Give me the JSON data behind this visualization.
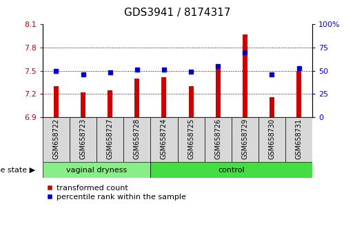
{
  "title": "GDS3941 / 8174317",
  "samples": [
    "GSM658722",
    "GSM658723",
    "GSM658727",
    "GSM658728",
    "GSM658724",
    "GSM658725",
    "GSM658726",
    "GSM658729",
    "GSM658730",
    "GSM658731"
  ],
  "transformed_count": [
    7.3,
    7.22,
    7.25,
    7.4,
    7.42,
    7.3,
    7.55,
    7.97,
    7.16,
    7.5
  ],
  "percentile_rank": [
    50,
    46,
    48,
    51,
    51,
    49,
    55,
    70,
    46,
    53
  ],
  "groups": [
    "vaginal dryness",
    "vaginal dryness",
    "vaginal dryness",
    "vaginal dryness",
    "control",
    "control",
    "control",
    "control",
    "control",
    "control"
  ],
  "ylim_left": [
    6.9,
    8.1
  ],
  "ylim_right": [
    0,
    100
  ],
  "yticks_left": [
    6.9,
    7.2,
    7.5,
    7.8,
    8.1
  ],
  "yticks_right": [
    0,
    25,
    50,
    75,
    100
  ],
  "ytick_labels_left": [
    "6.9",
    "7.2",
    "7.5",
    "7.8",
    "8.1"
  ],
  "ytick_labels_right": [
    "0",
    "25",
    "50",
    "75",
    "100%"
  ],
  "bar_color": "#cc0000",
  "dot_color": "#0000cc",
  "group_color_vaginal": "#88ee88",
  "group_color_control": "#44dd44",
  "legend_labels": [
    "transformed count",
    "percentile rank within the sample"
  ],
  "disease_state_label": "disease state",
  "grid_vals": [
    7.2,
    7.5,
    7.8
  ],
  "bar_width": 0.18,
  "tick_label_fontsize": 7,
  "axis_label_fontsize": 8,
  "title_fontsize": 11
}
